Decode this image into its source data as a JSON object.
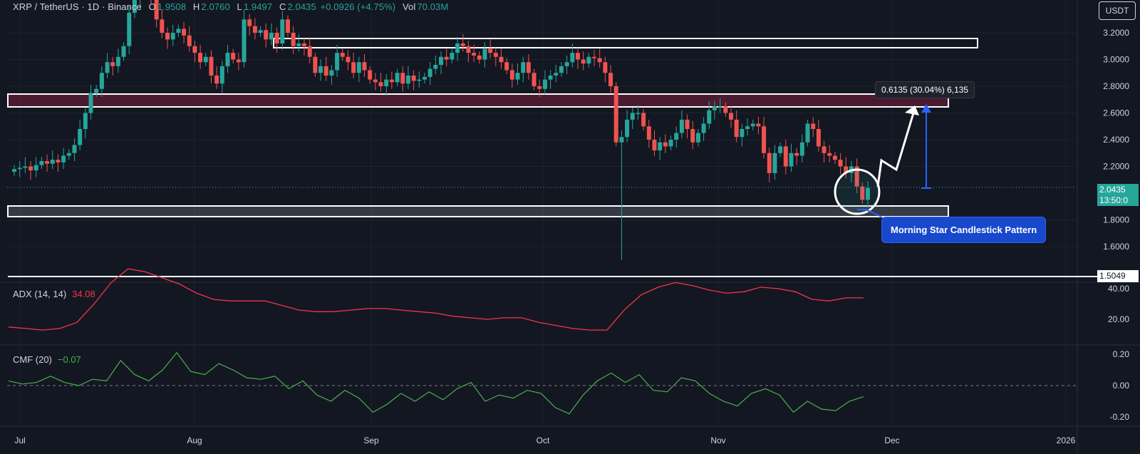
{
  "header": {
    "symbol": "XRP / TetherUS · 1D · Binance",
    "open_label": "O",
    "open": "1.9508",
    "high_label": "H",
    "high": "2.0760",
    "low_label": "L",
    "low": "1.9497",
    "close_label": "C",
    "close": "2.0435",
    "change": "+0.0926 (+4.75%)",
    "vol_label": "Vol",
    "vol": "70.03M"
  },
  "currency_button": "USDT",
  "current_price": "2.0435",
  "countdown": "13:50:0",
  "low_marker": "1.5049",
  "callout_range": "0.6135 (30.04%) 6,135",
  "pattern_label": "Morning Star Candlestick Pattern",
  "adx_legend": {
    "name": "ADX (14, 14)",
    "value": "34.08"
  },
  "cmf_legend": {
    "name": "CMF (20)",
    "value": "−0.07"
  },
  "colors": {
    "bull": "#26a69a",
    "bear": "#ef5350",
    "adx": "#f23645",
    "cmf": "#4caf50",
    "bg": "#131722",
    "callout_blue": "#1848cc"
  },
  "chart_data": [
    {
      "type": "candlestick",
      "name": "XRP / TetherUS",
      "x_tick_labels": [
        "Jul",
        "Aug",
        "Sep",
        "Oct",
        "Nov",
        "Dec",
        "2026"
      ],
      "y_tick_labels": [
        "3.2000",
        "3.0000",
        "2.8000",
        "2.6000",
        "2.4000",
        "2.2000",
        "1.8000",
        "1.6000"
      ],
      "ylim": [
        1.5,
        3.42
      ],
      "close_series": [
        2.18,
        2.19,
        2.2,
        2.17,
        2.21,
        2.24,
        2.22,
        2.25,
        2.23,
        2.28,
        2.3,
        2.36,
        2.48,
        2.6,
        2.75,
        2.78,
        2.9,
        2.98,
        2.95,
        3.02,
        3.1,
        3.35,
        3.45,
        3.52,
        3.55,
        3.45,
        3.3,
        3.2,
        3.15,
        3.2,
        3.23,
        3.18,
        3.1,
        3.05,
        2.98,
        3.02,
        2.88,
        2.82,
        2.95,
        3.05,
        3.0,
        2.98,
        3.3,
        3.25,
        3.2,
        3.22,
        3.15,
        3.2,
        3.12,
        3.3,
        3.2,
        3.1,
        3.12,
        3.1,
        3.02,
        2.9,
        2.95,
        2.88,
        2.92,
        3.05,
        3.02,
        2.98,
        2.9,
        2.98,
        2.92,
        2.85,
        2.83,
        2.8,
        2.85,
        2.83,
        2.9,
        2.82,
        2.88,
        2.84,
        2.85,
        2.87,
        2.93,
        2.96,
        3.02,
        3.0,
        3.05,
        3.12,
        3.1,
        3.05,
        3.03,
        3.0,
        3.08,
        3.05,
        3.02,
        2.98,
        2.92,
        2.85,
        2.9,
        2.98,
        2.9,
        2.8,
        2.78,
        2.85,
        2.88,
        2.9,
        2.95,
        2.98,
        3.05,
        3.0,
        2.97,
        3.02,
        3.01,
        2.98,
        2.9,
        2.8,
        2.38,
        2.42,
        2.55,
        2.6,
        2.6,
        2.5,
        2.4,
        2.32,
        2.38,
        2.35,
        2.4,
        2.45,
        2.55,
        2.48,
        2.38,
        2.45,
        2.52,
        2.62,
        2.65,
        2.65,
        2.6,
        2.55,
        2.42,
        2.48,
        2.5,
        2.52,
        2.5,
        2.3,
        2.15,
        2.3,
        2.35,
        2.2,
        2.3,
        2.28,
        2.38,
        2.52,
        2.48,
        2.35,
        2.3,
        2.28,
        2.25,
        2.2,
        2.15,
        2.2,
        2.05,
        1.95,
        2.04
      ]
    },
    {
      "type": "line",
      "series": [
        {
          "name": "ADX (14, 14)",
          "values": [
            15,
            14,
            13,
            14,
            18,
            30,
            44,
            53,
            51,
            47,
            43,
            37,
            33,
            32,
            32,
            32,
            29,
            26,
            25,
            25,
            26,
            27,
            27,
            26,
            25,
            24,
            22,
            21,
            20,
            21,
            21,
            18,
            16,
            14,
            13,
            13,
            26,
            36,
            41,
            44,
            42,
            39,
            37,
            38,
            41,
            40,
            38,
            33,
            32,
            34,
            34
          ]
        }
      ],
      "y_tick_labels": [
        "40.00",
        "20.00"
      ],
      "ylim": [
        5,
        60
      ]
    },
    {
      "type": "line",
      "series": [
        {
          "name": "CMF (20)",
          "values": [
            0.03,
            0.01,
            0.02,
            0.06,
            0.02,
            0.0,
            0.04,
            0.03,
            0.16,
            0.07,
            0.03,
            0.1,
            0.21,
            0.09,
            0.07,
            0.14,
            0.1,
            0.05,
            0.04,
            0.06,
            -0.02,
            0.03,
            -0.06,
            -0.1,
            -0.03,
            -0.08,
            -0.17,
            -0.12,
            -0.05,
            -0.1,
            -0.04,
            -0.09,
            -0.02,
            0.02,
            -0.1,
            -0.06,
            -0.08,
            -0.03,
            -0.05,
            -0.14,
            -0.18,
            -0.06,
            0.03,
            0.08,
            0.02,
            0.07,
            -0.03,
            -0.04,
            0.05,
            0.03,
            -0.05,
            -0.1,
            -0.13,
            -0.05,
            -0.02,
            -0.06,
            -0.17,
            -0.1,
            -0.15,
            -0.16,
            -0.1,
            -0.07
          ]
        }
      ],
      "y_tick_labels": [
        "0.20",
        "0.00",
        "-0.20"
      ],
      "ylim": [
        -0.24,
        0.26
      ]
    }
  ]
}
